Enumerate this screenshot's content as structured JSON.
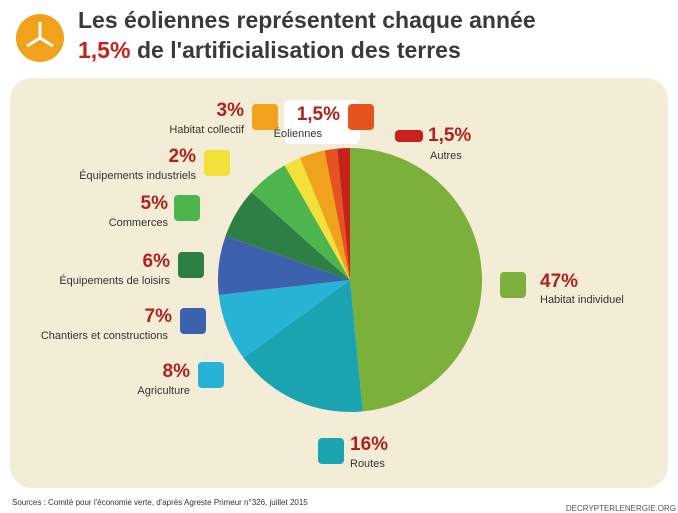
{
  "chart_data": {
    "type": "pie",
    "title": "Les éoliennes représentent chaque année",
    "title_highlight": "1,5%",
    "title_rest": "de l'artificialisation des terres",
    "categories": [
      "Habitat individuel",
      "Routes",
      "Agriculture",
      "Chantiers et constructions",
      "Équipements de loisirs",
      "Commerces",
      "Équipements industriels",
      "Habitat collectif",
      "Éoliennes",
      "Autres"
    ],
    "values": [
      47,
      16,
      8,
      7,
      6,
      5,
      2,
      3,
      1.5,
      1.5
    ],
    "value_labels": [
      "47%",
      "16%",
      "8%",
      "7%",
      "6%",
      "5%",
      "2%",
      "3%",
      "1,5%",
      "1,5%"
    ],
    "colors": [
      "#7bb03a",
      "#1aa3b0",
      "#27b3d6",
      "#3d62ad",
      "#2e7f45",
      "#4db54d",
      "#f2e13a",
      "#f0a21c",
      "#e5531f",
      "#c8211c"
    ],
    "source": "Sources : Comité pour l'économie verte, d'après Agreste Primeur n°326, juillet 2015",
    "credit": "DECRYPTERLENERGIE.ORG"
  }
}
